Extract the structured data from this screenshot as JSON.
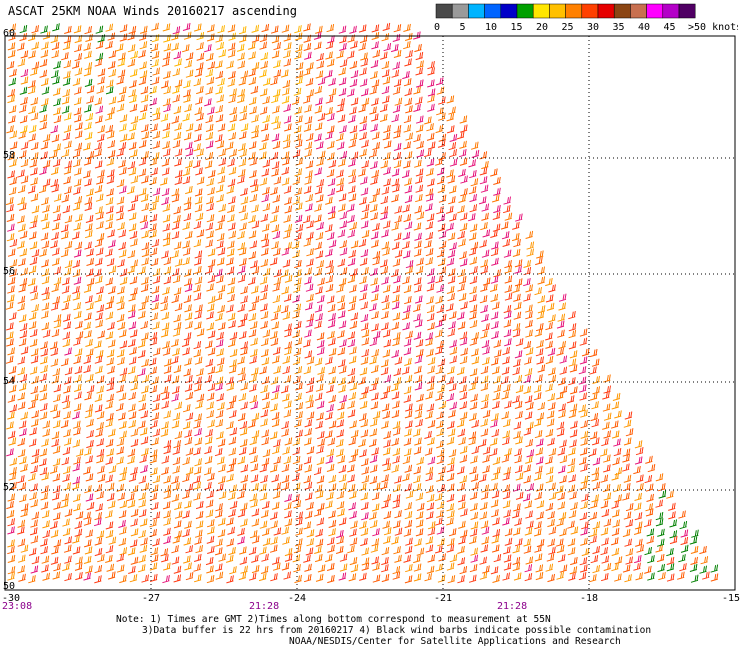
{
  "title": "ASCAT 25KM NOAA Winds 20160217 ascending",
  "scale": {
    "colors": [
      "#4a4a4a",
      "#9a9a9a",
      "#00b4ff",
      "#0064ff",
      "#0000c8",
      "#00a000",
      "#ffe600",
      "#ffc000",
      "#ff8000",
      "#ff4000",
      "#e60000",
      "#8b4513",
      "#c87050",
      "#ff00ff",
      "#b400c8",
      "#500064"
    ],
    "labels": [
      "0",
      "5",
      "10",
      "15",
      "20",
      "25",
      "30",
      "35",
      "40",
      "45",
      ">50 knots"
    ]
  },
  "axes": {
    "x_ticks": [
      "-30",
      "-27",
      "-24",
      "-21",
      "-18",
      "-15"
    ],
    "y_ticks": [
      "60",
      "58",
      "56",
      "54",
      "52",
      "50"
    ]
  },
  "times": [
    "23:08",
    "21:28",
    "21:28"
  ],
  "notes": [
    "Note: 1) Times are GMT 2)Times along bottom correspond to measurement at 55N",
    "3)Data buffer is 22 hrs from 20160217 4) Black wind barbs indicate possible contamination",
    "NOAA/NESDIS/Center for Satellite Applications and Research"
  ]
}
